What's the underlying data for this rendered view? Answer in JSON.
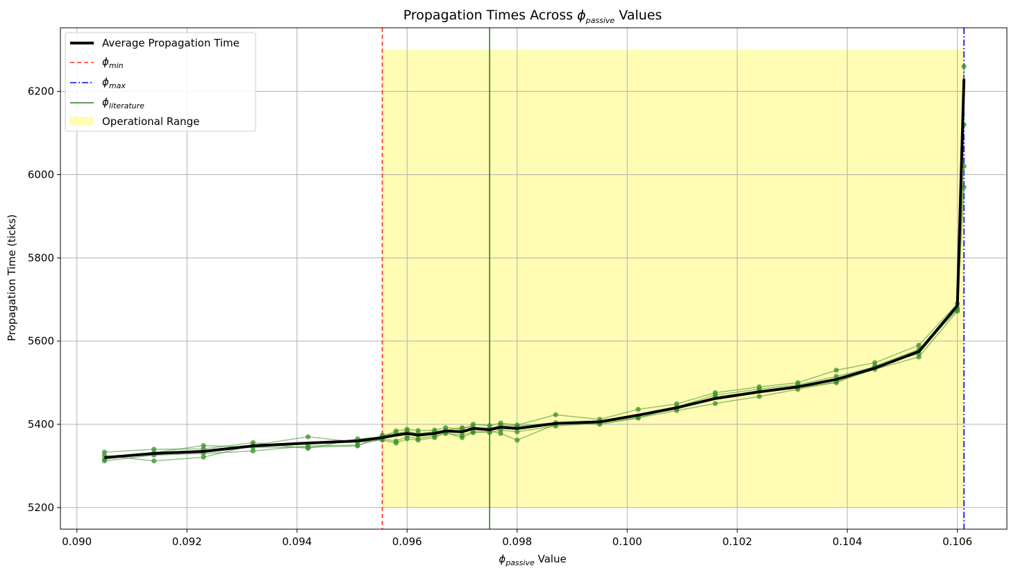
{
  "chart_data": {
    "type": "line",
    "title": {
      "prefix": "Propagation Times Across ",
      "symbol": "ϕ",
      "subscript": "passive",
      "suffix": " Values"
    },
    "xlabel": {
      "symbol": "ϕ",
      "subscript": "passive",
      "suffix": " Value"
    },
    "ylabel": "Propagation Time (ticks)",
    "xlim": [
      0.0897,
      0.1069
    ],
    "ylim": [
      5148,
      6353
    ],
    "xticks": [
      0.09,
      0.092,
      0.094,
      0.096,
      0.098,
      0.1,
      0.102,
      0.104,
      0.106
    ],
    "xtick_labels": [
      "0.090",
      "0.092",
      "0.094",
      "0.096",
      "0.098",
      "0.100",
      "0.102",
      "0.104",
      "0.106"
    ],
    "yticks": [
      5200,
      5400,
      5600,
      5800,
      6000,
      6200
    ],
    "ytick_labels": [
      "5200",
      "5400",
      "5600",
      "5800",
      "6000",
      "6200"
    ],
    "grid": true,
    "legend_position": "top-left",
    "legend": [
      {
        "key": "avg",
        "label": "Average Propagation Time",
        "symbol": "",
        "subscript": ""
      },
      {
        "key": "min",
        "label": "",
        "symbol": "ϕ",
        "subscript": "min"
      },
      {
        "key": "max",
        "label": "",
        "symbol": "ϕ",
        "subscript": "max"
      },
      {
        "key": "lit",
        "label": "",
        "symbol": "ϕ",
        "subscript": "literature"
      },
      {
        "key": "range",
        "label": "Operational Range",
        "symbol": "",
        "subscript": ""
      }
    ],
    "vertical_lines": {
      "phi_min": 0.09555,
      "phi_max": 0.10612,
      "phi_literature": 0.0975
    },
    "operational_range": {
      "x": [
        0.09555,
        0.10612
      ],
      "y": [
        5200,
        6300
      ]
    },
    "colors": {
      "average": "#000000",
      "runs": "#3a8f2a",
      "phi_min": "#ff2a1a",
      "phi_max": "#0000ff",
      "phi_literature": "#2e7d1e",
      "range_fill": "#fffcb4",
      "grid": "#b0b0b0"
    },
    "x": [
      0.0905,
      0.0914,
      0.0923,
      0.0932,
      0.0942,
      0.0951,
      0.09555,
      0.0958,
      0.096,
      0.0962,
      0.0965,
      0.0967,
      0.097,
      0.0972,
      0.0975,
      0.0977,
      0.098,
      0.0987,
      0.0995,
      0.1002,
      0.1009,
      0.1016,
      0.1024,
      0.1031,
      0.1038,
      0.1045,
      0.1053,
      0.106,
      0.10612
    ],
    "average": [
      5320,
      5330,
      5335,
      5348,
      5355,
      5360,
      5368,
      5374,
      5378,
      5374,
      5378,
      5384,
      5382,
      5390,
      5387,
      5393,
      5390,
      5402,
      5406,
      5422,
      5440,
      5462,
      5478,
      5490,
      5508,
      5535,
      5575,
      5685,
      6230
    ],
    "runs": [
      [
        5333,
        5340,
        5341,
        5356,
        5342,
        5365,
        5370,
        5384,
        5388,
        5385,
        5386,
        5392,
        5388,
        5400,
        5397,
        5403,
        5398,
        5423,
        5412,
        5436,
        5449,
        5476,
        5490,
        5500,
        5530,
        5548,
        5590,
        5690,
        6260
      ],
      [
        5312,
        5326,
        5330,
        5336,
        5348,
        5350,
        5365,
        5360,
        5370,
        5366,
        5372,
        5378,
        5374,
        5382,
        5380,
        5386,
        5382,
        5396,
        5403,
        5416,
        5433,
        5450,
        5467,
        5484,
        5502,
        5532,
        5562,
        5672,
        6120
      ],
      [
        5325,
        5312,
        5321,
        5350,
        5370,
        5357,
        5362,
        5355,
        5365,
        5362,
        5368,
        5380,
        5368,
        5380,
        5384,
        5378,
        5362,
        5400,
        5405,
        5420,
        5437,
        5465,
        5480,
        5488,
        5500,
        5540,
        5580,
        5675,
        6020
      ],
      [
        5316,
        5332,
        5349,
        5345,
        5345,
        5348,
        5374,
        5378,
        5383,
        5378,
        5382,
        5386,
        5392,
        5393,
        5390,
        5398,
        5396,
        5404,
        5400,
        5415,
        5442,
        5470,
        5485,
        5495,
        5515,
        5538,
        5570,
        5680,
        5970
      ]
    ]
  }
}
